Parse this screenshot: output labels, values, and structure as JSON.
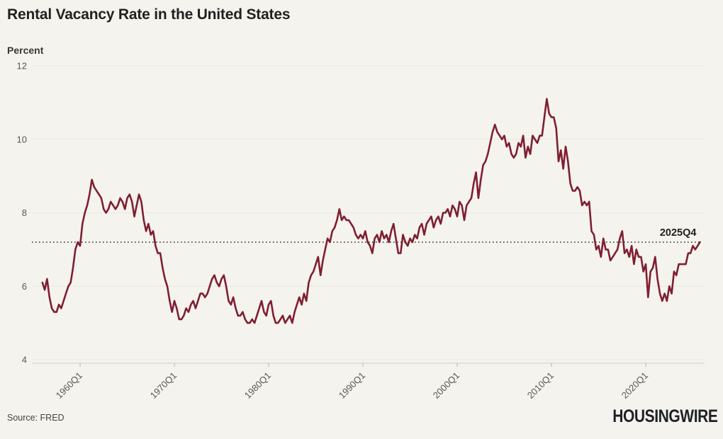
{
  "header": {
    "title": "Rental Vacancy Rate in the United States"
  },
  "footer": {
    "source": "Source: FRED",
    "logo": "HOUSINGWIRE"
  },
  "colors": {
    "background": "#f5f3ee",
    "line": "#7f1f31",
    "grid": "#e9e7e0",
    "axis": "#d8d6ce",
    "tick_mark": "#b5b3ac",
    "dotted_reference": "#2b2a28",
    "title_text": "#222120",
    "tick_text": "#5a5852",
    "logo_text": "#1e2126"
  },
  "chart_data": {
    "type": "line",
    "title": "Rental Vacancy Rate in the United States",
    "xlabel": "",
    "ylabel": "Percent",
    "unit": "percent",
    "series_name": "Rental vacancy rate",
    "frequency": "quarterly",
    "start_period": "1956Q1",
    "end_period": "2025Q4",
    "ylim": [
      4,
      12
    ],
    "y_ticks": [
      4,
      6,
      8,
      10,
      12
    ],
    "x_ticks": [
      "1960Q1",
      "1970Q1",
      "1980Q1",
      "1990Q1",
      "2000Q1",
      "2010Q1",
      "2020Q1"
    ],
    "grid": "horizontal-only",
    "legend": "none",
    "reference_line": {
      "label": "2025Q4",
      "value": 7.2,
      "style": "dotted"
    },
    "values": [
      6.1,
      5.9,
      6.2,
      5.7,
      5.4,
      5.3,
      5.3,
      5.5,
      5.4,
      5.6,
      5.8,
      6.0,
      6.1,
      6.5,
      7.0,
      7.2,
      7.1,
      7.7,
      8.0,
      8.2,
      8.5,
      8.9,
      8.7,
      8.6,
      8.5,
      8.4,
      8.1,
      8.0,
      8.1,
      8.3,
      8.2,
      8.1,
      8.2,
      8.4,
      8.3,
      8.1,
      8.4,
      8.5,
      8.3,
      7.9,
      8.2,
      8.5,
      8.3,
      7.8,
      7.5,
      7.7,
      7.4,
      7.5,
      7.1,
      6.9,
      6.9,
      6.5,
      6.2,
      6.0,
      5.6,
      5.3,
      5.6,
      5.4,
      5.1,
      5.1,
      5.2,
      5.4,
      5.3,
      5.5,
      5.6,
      5.4,
      5.6,
      5.8,
      5.8,
      5.7,
      5.8,
      6.0,
      6.2,
      6.3,
      6.1,
      6.0,
      6.2,
      6.3,
      6.0,
      5.6,
      5.5,
      5.7,
      5.4,
      5.2,
      5.2,
      5.3,
      5.1,
      5.0,
      5.0,
      5.1,
      5.0,
      5.2,
      5.4,
      5.6,
      5.3,
      5.2,
      5.5,
      5.6,
      5.2,
      5.0,
      5.0,
      5.1,
      5.2,
      5.0,
      5.1,
      5.2,
      5.0,
      5.3,
      5.5,
      5.7,
      5.5,
      5.8,
      5.6,
      6.1,
      6.3,
      6.4,
      6.6,
      6.8,
      6.3,
      6.7,
      7.0,
      7.3,
      7.2,
      7.5,
      7.6,
      7.8,
      8.1,
      7.8,
      7.9,
      7.8,
      7.8,
      7.7,
      7.6,
      7.4,
      7.3,
      7.4,
      7.3,
      7.5,
      7.2,
      7.1,
      6.9,
      7.3,
      7.4,
      7.2,
      7.5,
      7.3,
      7.4,
      7.2,
      7.5,
      7.7,
      7.3,
      6.9,
      6.9,
      7.4,
      7.2,
      7.1,
      7.3,
      7.2,
      7.4,
      7.3,
      7.6,
      7.7,
      7.4,
      7.7,
      7.8,
      7.9,
      7.6,
      7.8,
      7.9,
      7.7,
      8.0,
      8.0,
      8.1,
      7.9,
      8.2,
      8.1,
      7.9,
      8.3,
      8.2,
      7.8,
      8.2,
      8.3,
      8.4,
      8.8,
      9.1,
      8.4,
      8.9,
      9.3,
      9.4,
      9.6,
      9.9,
      10.2,
      10.4,
      10.2,
      10.1,
      10.0,
      10.1,
      9.8,
      9.9,
      9.6,
      9.5,
      9.6,
      9.9,
      9.8,
      10.1,
      9.5,
      9.8,
      9.6,
      10.1,
      10.0,
      9.9,
      10.1,
      10.1,
      10.6,
      11.1,
      10.7,
      10.6,
      10.6,
      10.3,
      9.4,
      9.7,
      9.2,
      9.8,
      9.4,
      8.8,
      8.6,
      8.6,
      8.7,
      8.6,
      8.2,
      8.3,
      8.2,
      8.3,
      7.5,
      7.4,
      7.0,
      7.1,
      6.8,
      7.3,
      7.0,
      7.0,
      6.7,
      6.8,
      6.9,
      7.0,
      7.3,
      7.5,
      6.9,
      7.0,
      6.8,
      7.1,
      6.6,
      7.0,
      6.8,
      6.8,
      6.4,
      6.6,
      5.7,
      6.4,
      6.5,
      6.8,
      6.2,
      5.8,
      5.6,
      5.8,
      5.6,
      6.0,
      5.8,
      6.4,
      6.3,
      6.6,
      6.6,
      6.6,
      6.6,
      6.9,
      6.9,
      7.1,
      7.0,
      7.1,
      7.2
    ]
  }
}
